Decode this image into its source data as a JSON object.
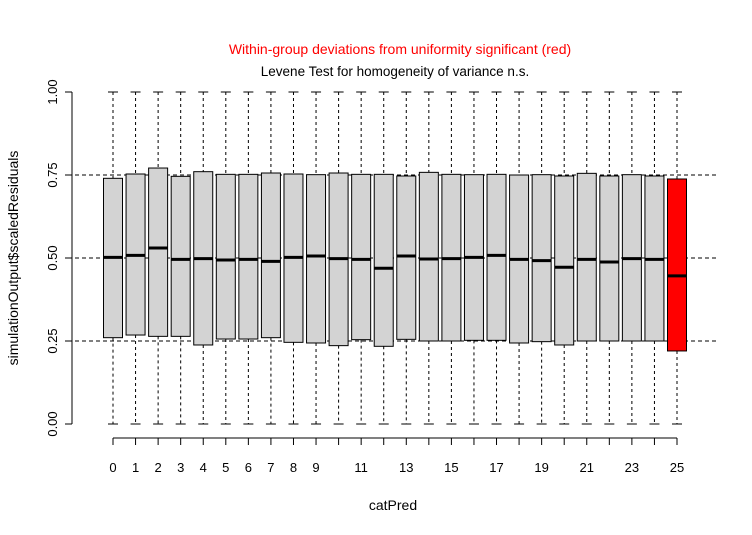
{
  "chart_data": {
    "type": "boxplot",
    "title": "Within-group deviations from uniformity significant (red)",
    "subtitle": "Levene Test for homogeneity of variance n.s.",
    "xlabel": "catPred",
    "ylabel": "simulationOutput$scaledResiduals",
    "ylim": [
      0,
      1
    ],
    "yticks": [
      "0.00",
      "0.25",
      "0.50",
      "0.75",
      "1.00"
    ],
    "reference_lines": [
      0.25,
      0.5,
      0.75
    ],
    "x_tick_labels_shown": [
      "0",
      "1",
      "2",
      "3",
      "4",
      "5",
      "6",
      "7",
      "8",
      "9",
      "11",
      "13",
      "15",
      "17",
      "19",
      "21",
      "23",
      "25"
    ],
    "categories": [
      "0",
      "1",
      "2",
      "3",
      "4",
      "5",
      "6",
      "7",
      "8",
      "9",
      "10",
      "11",
      "12",
      "13",
      "14",
      "15",
      "16",
      "17",
      "18",
      "19",
      "20",
      "21",
      "22",
      "23",
      "24",
      "25"
    ],
    "boxes": [
      {
        "q1": 0.26,
        "median": 0.502,
        "q3": 0.74,
        "min": 0.0,
        "max": 1.0
      },
      {
        "q1": 0.268,
        "median": 0.508,
        "q3": 0.753,
        "min": 0.0,
        "max": 1.0
      },
      {
        "q1": 0.264,
        "median": 0.53,
        "q3": 0.771,
        "min": 0.0,
        "max": 1.0
      },
      {
        "q1": 0.264,
        "median": 0.496,
        "q3": 0.746,
        "min": 0.0,
        "max": 1.0
      },
      {
        "q1": 0.238,
        "median": 0.498,
        "q3": 0.76,
        "min": 0.0,
        "max": 1.0
      },
      {
        "q1": 0.256,
        "median": 0.494,
        "q3": 0.752,
        "min": 0.0,
        "max": 1.0
      },
      {
        "q1": 0.256,
        "median": 0.496,
        "q3": 0.752,
        "min": 0.0,
        "max": 1.0
      },
      {
        "q1": 0.26,
        "median": 0.49,
        "q3": 0.756,
        "min": 0.0,
        "max": 1.0
      },
      {
        "q1": 0.246,
        "median": 0.502,
        "q3": 0.753,
        "min": 0.0,
        "max": 1.0
      },
      {
        "q1": 0.244,
        "median": 0.506,
        "q3": 0.751,
        "min": 0.0,
        "max": 1.0
      },
      {
        "q1": 0.236,
        "median": 0.498,
        "q3": 0.756,
        "min": 0.0,
        "max": 1.0
      },
      {
        "q1": 0.254,
        "median": 0.496,
        "q3": 0.752,
        "min": 0.0,
        "max": 1.0
      },
      {
        "q1": 0.234,
        "median": 0.469,
        "q3": 0.752,
        "min": 0.0,
        "max": 1.0
      },
      {
        "q1": 0.255,
        "median": 0.506,
        "q3": 0.747,
        "min": 0.0,
        "max": 1.0
      },
      {
        "q1": 0.25,
        "median": 0.497,
        "q3": 0.758,
        "min": 0.0,
        "max": 1.0
      },
      {
        "q1": 0.25,
        "median": 0.498,
        "q3": 0.752,
        "min": 0.0,
        "max": 1.0
      },
      {
        "q1": 0.252,
        "median": 0.502,
        "q3": 0.751,
        "min": 0.0,
        "max": 1.0
      },
      {
        "q1": 0.252,
        "median": 0.508,
        "q3": 0.752,
        "min": 0.0,
        "max": 1.0
      },
      {
        "q1": 0.244,
        "median": 0.496,
        "q3": 0.75,
        "min": 0.0,
        "max": 1.0
      },
      {
        "q1": 0.248,
        "median": 0.492,
        "q3": 0.751,
        "min": 0.0,
        "max": 1.0
      },
      {
        "q1": 0.238,
        "median": 0.472,
        "q3": 0.747,
        "min": 0.0,
        "max": 1.0
      },
      {
        "q1": 0.25,
        "median": 0.496,
        "q3": 0.755,
        "min": 0.0,
        "max": 1.0
      },
      {
        "q1": 0.25,
        "median": 0.488,
        "q3": 0.747,
        "min": 0.0,
        "max": 1.0
      },
      {
        "q1": 0.25,
        "median": 0.498,
        "q3": 0.751,
        "min": 0.0,
        "max": 1.0
      },
      {
        "q1": 0.25,
        "median": 0.496,
        "q3": 0.747,
        "min": 0.0,
        "max": 1.0
      },
      {
        "q1": 0.22,
        "median": 0.446,
        "q3": 0.738,
        "min": 0.0,
        "max": 1.0,
        "significant": true
      }
    ],
    "colors": {
      "box_fill": "#d3d3d3",
      "significant_fill": "#ff0000",
      "title_color": "#ff0000",
      "text": "#000000"
    },
    "grid": false
  }
}
